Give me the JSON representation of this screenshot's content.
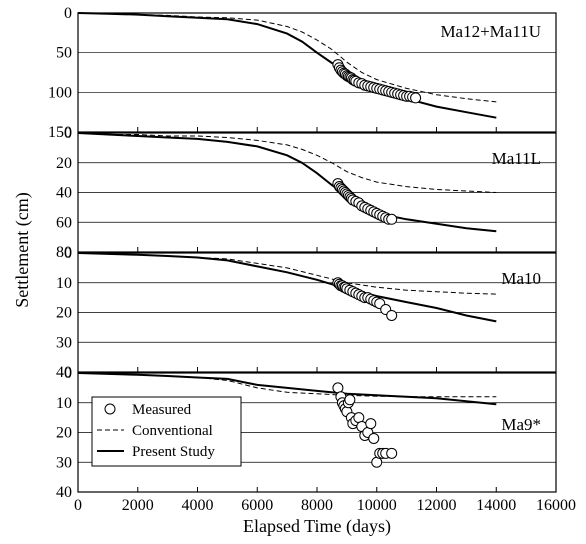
{
  "chart_data": {
    "type": "line",
    "xlabel": "Elapsed Time (days)",
    "ylabel": "Settlement (cm)",
    "xlim": [
      0,
      16000
    ],
    "x_ticks": [
      0,
      2000,
      4000,
      6000,
      8000,
      10000,
      12000,
      14000,
      16000
    ],
    "grid": "horizontal only",
    "legend": {
      "placement": "bottom-left of lowest panel",
      "entries": [
        {
          "name": "Measured",
          "style": "open-circle"
        },
        {
          "name": "Conventional",
          "style": "dashed-line"
        },
        {
          "name": "Present Study",
          "style": "solid-line"
        }
      ]
    },
    "panels": [
      {
        "label": "Ma12+Ma11U",
        "ylim": [
          0,
          150
        ],
        "y_inverted": true,
        "y_ticks": [
          0,
          50,
          100,
          150
        ],
        "series": [
          {
            "name": "Present Study",
            "x": [
              0,
              1000,
              2000,
              3000,
              4000,
              5000,
              6000,
              7000,
              7500,
              8000,
              8500,
              9000,
              9500,
              10000,
              11000,
              12000,
              13000,
              14000
            ],
            "y": [
              0,
              1,
              2,
              4,
              6,
              8,
              14,
              26,
              36,
              50,
              63,
              74,
              84,
              95,
              108,
              118,
              125,
              132
            ]
          },
          {
            "name": "Conventional",
            "x": [
              0,
              1000,
              2000,
              3000,
              4000,
              5000,
              6000,
              7000,
              7500,
              8000,
              8500,
              9000,
              9500,
              10000,
              11000,
              12000,
              13000,
              14000
            ],
            "y": [
              0,
              1,
              2,
              3,
              5,
              6,
              9,
              17,
              24,
              34,
              46,
              62,
              75,
              84,
              95,
              103,
              108,
              112
            ]
          },
          {
            "name": "Measured",
            "x": [
              8700,
              8750,
              8800,
              8850,
              8900,
              8950,
              9000,
              9050,
              9100,
              9150,
              9200,
              9250,
              9300,
              9400,
              9500,
              9600,
              9700,
              9800,
              9900,
              10000,
              10100,
              10200,
              10300,
              10400,
              10500,
              10600,
              10700,
              10800,
              10900,
              11000,
              11100,
              11200,
              11300
            ],
            "y": [
              65,
              69,
              72,
              74,
              76,
              77,
              79,
              80,
              81,
              82,
              84,
              85,
              86,
              88,
              89,
              91,
              92,
              93,
              94,
              95,
              96,
              97,
              98,
              99,
              100,
              101,
              102,
              103,
              104,
              105,
              105,
              106,
              107
            ]
          }
        ]
      },
      {
        "label": "Ma11L",
        "ylim": [
          0,
          80
        ],
        "y_inverted": true,
        "y_ticks": [
          0,
          20,
          40,
          60,
          80
        ],
        "series": [
          {
            "name": "Present Study",
            "x": [
              0,
              1000,
              2000,
              3000,
              4000,
              5000,
              6000,
              7000,
              7500,
              8000,
              8500,
              9000,
              9500,
              10000,
              10500,
              11000,
              12000,
              13000,
              14000
            ],
            "y": [
              0,
              1,
              2,
              3,
              4,
              6,
              9,
              15,
              20,
              27,
              35,
              42,
              48,
              53,
              56,
              58,
              61,
              64,
              66
            ]
          },
          {
            "name": "Conventional",
            "x": [
              0,
              1000,
              2000,
              3000,
              4000,
              5000,
              6000,
              7000,
              7500,
              8000,
              8500,
              9000,
              9500,
              10000,
              11000,
              12000,
              13000,
              14000
            ],
            "y": [
              0,
              1,
              1,
              2,
              2,
              3,
              5,
              8,
              11,
              15,
              20,
              26,
              30,
              33,
              36,
              38,
              39,
              40
            ]
          },
          {
            "name": "Measured",
            "x": [
              8700,
              8750,
              8800,
              8850,
              8900,
              8950,
              9000,
              9050,
              9100,
              9150,
              9200,
              9300,
              9400,
              9500,
              9600,
              9700,
              9800,
              9900,
              10000,
              10100,
              10200,
              10300,
              10400,
              10500
            ],
            "y": [
              34,
              36,
              37,
              38,
              39,
              40,
              41,
              42,
              43,
              44,
              45,
              46,
              47,
              49,
              50,
              51,
              52,
              53,
              54,
              55,
              56,
              57,
              58,
              58
            ]
          }
        ]
      },
      {
        "label": "Ma10",
        "ylim": [
          0,
          40
        ],
        "y_inverted": true,
        "y_ticks": [
          0,
          10,
          20,
          30,
          40
        ],
        "series": [
          {
            "name": "Present Study",
            "x": [
              0,
              1000,
              2000,
              3000,
              4000,
              5000,
              6000,
              7000,
              8000,
              9000,
              10000,
              11000,
              12000,
              13000,
              14000
            ],
            "y": [
              0,
              0.3,
              0.6,
              1,
              1.5,
              2.5,
              4.5,
              6.5,
              9,
              12,
              14.5,
              16.5,
              18.5,
              21,
              23
            ]
          },
          {
            "name": "Conventional",
            "x": [
              0,
              1000,
              2000,
              3000,
              4000,
              5000,
              6000,
              7000,
              8000,
              9000,
              10000,
              11000,
              12000,
              13000,
              14000
            ],
            "y": [
              0,
              0.3,
              0.6,
              1,
              1.5,
              2,
              3.5,
              5,
              7.5,
              10,
              11.5,
              12.5,
              13,
              13.5,
              13.8
            ]
          },
          {
            "name": "Measured",
            "x": [
              8700,
              8750,
              8800,
              8850,
              8900,
              8950,
              9000,
              9100,
              9200,
              9300,
              9400,
              9500,
              9600,
              9700,
              9800,
              9900,
              10000,
              10100,
              10300,
              10500
            ],
            "y": [
              10,
              10.5,
              11,
              11,
              11.5,
              11.5,
              12,
              12.5,
              13,
              13.5,
              14,
              14.5,
              15,
              15,
              15.5,
              16,
              16.5,
              17,
              19,
              21
            ]
          }
        ]
      },
      {
        "label": "Ma9*",
        "ylim": [
          0,
          40
        ],
        "y_inverted": true,
        "y_ticks": [
          0,
          10,
          20,
          30,
          40
        ],
        "series": [
          {
            "name": "Present Study",
            "x": [
              0,
              1000,
              2000,
              3000,
              4000,
              5000,
              6000,
              7000,
              8000,
              9000,
              10000,
              11000,
              12000,
              13000,
              14000
            ],
            "y": [
              0,
              0.3,
              0.6,
              1,
              1.5,
              2,
              4,
              5,
              6,
              7,
              7.5,
              8,
              8.5,
              9.5,
              10.5
            ]
          },
          {
            "name": "Conventional",
            "x": [
              0,
              1000,
              2000,
              3000,
              4000,
              5000,
              6000,
              7000,
              8000,
              9000,
              10000,
              11000,
              12000,
              13000,
              14000
            ],
            "y": [
              0,
              0.3,
              0.6,
              1,
              1.5,
              2.5,
              5,
              6.5,
              7,
              7.5,
              7.8,
              8,
              8,
              8,
              8
            ]
          },
          {
            "name": "Measured",
            "x": [
              8700,
              8800,
              8850,
              8900,
              8950,
              9000,
              9050,
              9100,
              9150,
              9200,
              9300,
              9400,
              9500,
              9600,
              9700,
              9800,
              9900,
              10000,
              10100,
              10200,
              10300,
              10500
            ],
            "y": [
              5,
              8,
              10,
              11,
              12,
              13,
              10,
              9,
              15,
              17,
              16,
              15,
              18,
              21,
              20,
              17,
              22,
              30,
              27,
              27,
              27,
              27
            ]
          }
        ]
      }
    ]
  }
}
